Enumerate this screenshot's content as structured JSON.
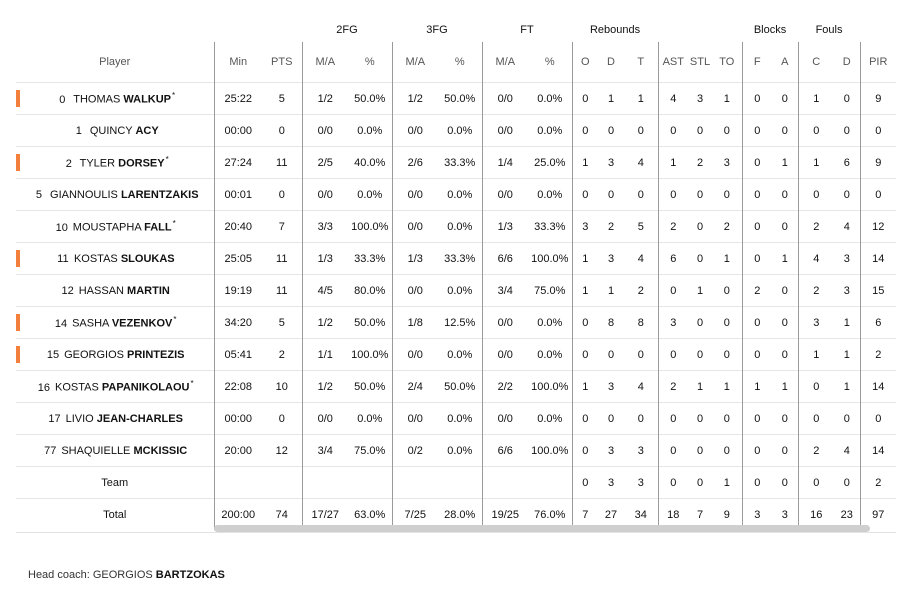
{
  "headers": {
    "groups": {
      "fg2": "2FG",
      "fg3": "3FG",
      "ft": "FT",
      "rebounds": "Rebounds",
      "blocks": "Blocks",
      "fouls": "Fouls"
    },
    "player": "Player",
    "min": "Min",
    "pts": "PTS",
    "ma": "M/A",
    "pct": "%",
    "o": "O",
    "d": "D",
    "t": "T",
    "ast": "AST",
    "stl": "STL",
    "to": "TO",
    "f": "F",
    "a": "A",
    "c": "C",
    "dfoul": "D",
    "pir": "PIR"
  },
  "starter_color": "#f47f3c",
  "players": [
    {
      "num": "0",
      "first": "THOMAS",
      "last": "WALKUP",
      "star": "*",
      "bar": true,
      "min": "25:22",
      "pts": "5",
      "fg2": "1/2",
      "fg2p": "50.0%",
      "fg3": "1/2",
      "fg3p": "50.0%",
      "ft": "0/0",
      "ftp": "0.0%",
      "o": "0",
      "d": "1",
      "t": "1",
      "ast": "4",
      "stl": "3",
      "to": "1",
      "bf": "0",
      "ba": "0",
      "fc": "1",
      "fd": "0",
      "pir": "9"
    },
    {
      "num": "1",
      "first": "QUINCY",
      "last": "ACY",
      "star": "",
      "bar": false,
      "min": "00:00",
      "pts": "0",
      "fg2": "0/0",
      "fg2p": "0.0%",
      "fg3": "0/0",
      "fg3p": "0.0%",
      "ft": "0/0",
      "ftp": "0.0%",
      "o": "0",
      "d": "0",
      "t": "0",
      "ast": "0",
      "stl": "0",
      "to": "0",
      "bf": "0",
      "ba": "0",
      "fc": "0",
      "fd": "0",
      "pir": "0"
    },
    {
      "num": "2",
      "first": "TYLER",
      "last": "DORSEY",
      "star": "*",
      "bar": true,
      "min": "27:24",
      "pts": "11",
      "fg2": "2/5",
      "fg2p": "40.0%",
      "fg3": "2/6",
      "fg3p": "33.3%",
      "ft": "1/4",
      "ftp": "25.0%",
      "o": "1",
      "d": "3",
      "t": "4",
      "ast": "1",
      "stl": "2",
      "to": "3",
      "bf": "0",
      "ba": "1",
      "fc": "1",
      "fd": "6",
      "pir": "9"
    },
    {
      "num": "5",
      "first": "GIANNOULIS",
      "last": "LARENTZAKIS",
      "star": "",
      "bar": false,
      "min": "00:01",
      "pts": "0",
      "fg2": "0/0",
      "fg2p": "0.0%",
      "fg3": "0/0",
      "fg3p": "0.0%",
      "ft": "0/0",
      "ftp": "0.0%",
      "o": "0",
      "d": "0",
      "t": "0",
      "ast": "0",
      "stl": "0",
      "to": "0",
      "bf": "0",
      "ba": "0",
      "fc": "0",
      "fd": "0",
      "pir": "0"
    },
    {
      "num": "10",
      "first": "MOUSTAPHA",
      "last": "FALL",
      "star": "*",
      "bar": false,
      "min": "20:40",
      "pts": "7",
      "fg2": "3/3",
      "fg2p": "100.0%",
      "fg3": "0/0",
      "fg3p": "0.0%",
      "ft": "1/3",
      "ftp": "33.3%",
      "o": "3",
      "d": "2",
      "t": "5",
      "ast": "2",
      "stl": "0",
      "to": "2",
      "bf": "0",
      "ba": "0",
      "fc": "2",
      "fd": "4",
      "pir": "12"
    },
    {
      "num": "11",
      "first": "KOSTAS",
      "last": "SLOUKAS",
      "star": "",
      "bar": true,
      "min": "25:05",
      "pts": "11",
      "fg2": "1/3",
      "fg2p": "33.3%",
      "fg3": "1/3",
      "fg3p": "33.3%",
      "ft": "6/6",
      "ftp": "100.0%",
      "o": "1",
      "d": "3",
      "t": "4",
      "ast": "6",
      "stl": "0",
      "to": "1",
      "bf": "0",
      "ba": "1",
      "fc": "4",
      "fd": "3",
      "pir": "14"
    },
    {
      "num": "12",
      "first": "HASSAN",
      "last": "MARTIN",
      "star": "",
      "bar": false,
      "min": "19:19",
      "pts": "11",
      "fg2": "4/5",
      "fg2p": "80.0%",
      "fg3": "0/0",
      "fg3p": "0.0%",
      "ft": "3/4",
      "ftp": "75.0%",
      "o": "1",
      "d": "1",
      "t": "2",
      "ast": "0",
      "stl": "1",
      "to": "0",
      "bf": "2",
      "ba": "0",
      "fc": "2",
      "fd": "3",
      "pir": "15"
    },
    {
      "num": "14",
      "first": "SASHA",
      "last": "VEZENKOV",
      "star": "*",
      "bar": true,
      "min": "34:20",
      "pts": "5",
      "fg2": "1/2",
      "fg2p": "50.0%",
      "fg3": "1/8",
      "fg3p": "12.5%",
      "ft": "0/0",
      "ftp": "0.0%",
      "o": "0",
      "d": "8",
      "t": "8",
      "ast": "3",
      "stl": "0",
      "to": "0",
      "bf": "0",
      "ba": "0",
      "fc": "3",
      "fd": "1",
      "pir": "6"
    },
    {
      "num": "15",
      "first": "GEORGIOS",
      "last": "PRINTEZIS",
      "star": "",
      "bar": true,
      "min": "05:41",
      "pts": "2",
      "fg2": "1/1",
      "fg2p": "100.0%",
      "fg3": "0/0",
      "fg3p": "0.0%",
      "ft": "0/0",
      "ftp": "0.0%",
      "o": "0",
      "d": "0",
      "t": "0",
      "ast": "0",
      "stl": "0",
      "to": "0",
      "bf": "0",
      "ba": "0",
      "fc": "1",
      "fd": "1",
      "pir": "2"
    },
    {
      "num": "16",
      "first": "KOSTAS",
      "last": "PAPANIKOLAOU",
      "star": "*",
      "bar": false,
      "min": "22:08",
      "pts": "10",
      "fg2": "1/2",
      "fg2p": "50.0%",
      "fg3": "2/4",
      "fg3p": "50.0%",
      "ft": "2/2",
      "ftp": "100.0%",
      "o": "1",
      "d": "3",
      "t": "4",
      "ast": "2",
      "stl": "1",
      "to": "1",
      "bf": "1",
      "ba": "1",
      "fc": "0",
      "fd": "1",
      "pir": "14"
    },
    {
      "num": "17",
      "first": "LIVIO",
      "last": "JEAN-CHARLES",
      "star": "",
      "bar": false,
      "min": "00:00",
      "pts": "0",
      "fg2": "0/0",
      "fg2p": "0.0%",
      "fg3": "0/0",
      "fg3p": "0.0%",
      "ft": "0/0",
      "ftp": "0.0%",
      "o": "0",
      "d": "0",
      "t": "0",
      "ast": "0",
      "stl": "0",
      "to": "0",
      "bf": "0",
      "ba": "0",
      "fc": "0",
      "fd": "0",
      "pir": "0"
    },
    {
      "num": "77",
      "first": "SHAQUIELLE",
      "last": "MCKISSIC",
      "star": "",
      "bar": false,
      "min": "20:00",
      "pts": "12",
      "fg2": "3/4",
      "fg2p": "75.0%",
      "fg3": "0/2",
      "fg3p": "0.0%",
      "ft": "6/6",
      "ftp": "100.0%",
      "o": "0",
      "d": "3",
      "t": "3",
      "ast": "0",
      "stl": "0",
      "to": "0",
      "bf": "0",
      "ba": "0",
      "fc": "2",
      "fd": "4",
      "pir": "14"
    }
  ],
  "team": {
    "label": "Team",
    "o": "0",
    "d": "3",
    "t": "3",
    "ast": "0",
    "stl": "0",
    "to": "1",
    "bf": "0",
    "ba": "0",
    "fc": "0",
    "fd": "0",
    "pir": "2"
  },
  "total": {
    "label": "Total",
    "min": "200:00",
    "pts": "74",
    "fg2": "17/27",
    "fg2p": "63.0%",
    "fg3": "7/25",
    "fg3p": "28.0%",
    "ft": "19/25",
    "ftp": "76.0%",
    "o": "7",
    "d": "27",
    "t": "34",
    "ast": "18",
    "stl": "7",
    "to": "9",
    "bf": "3",
    "ba": "3",
    "fc": "16",
    "fd": "23",
    "pir": "97"
  },
  "coach": {
    "label": "Head coach:",
    "first": "GEORGIOS",
    "last": "BARTZOKAS"
  }
}
